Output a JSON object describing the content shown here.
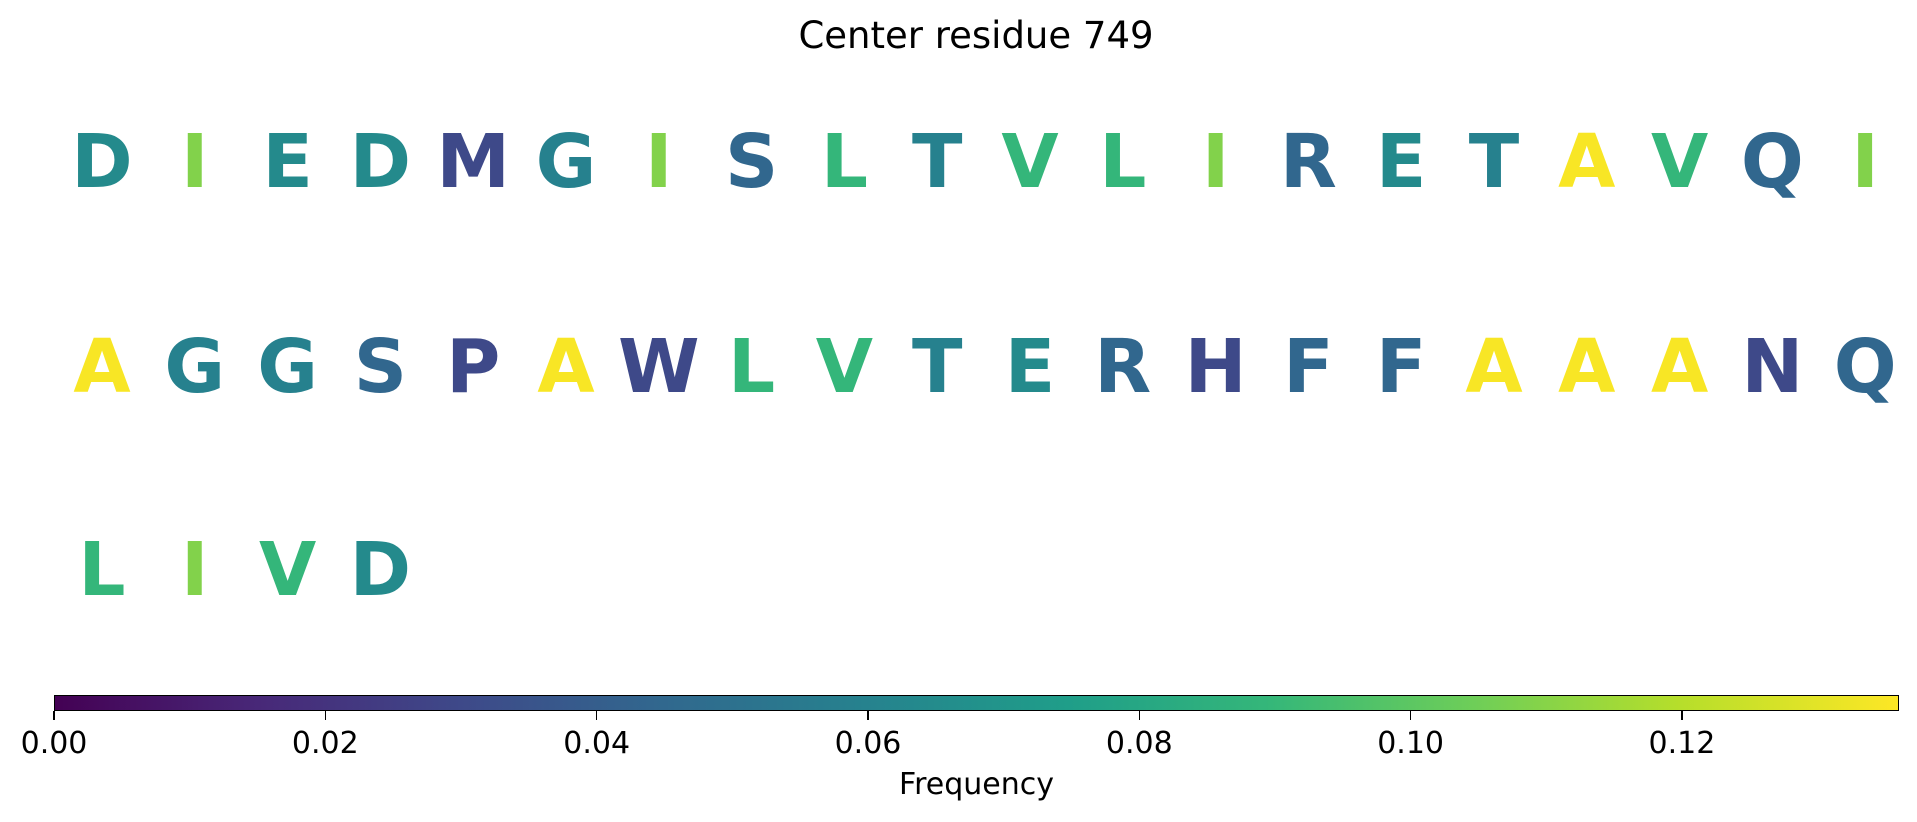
{
  "chart_data": {
    "type": "sequence-logo",
    "title": "Center residue 749",
    "rows": [
      [
        "D",
        "I",
        "E",
        "D",
        "M",
        "G",
        "I",
        "S",
        "L",
        "T",
        "V",
        "L",
        "I",
        "R",
        "E",
        "T",
        "A",
        "V",
        "Q",
        "I"
      ],
      [
        "A",
        "G",
        "G",
        "S",
        "P",
        "A",
        "W",
        "L",
        "V",
        "T",
        "E",
        "R",
        "H",
        "F",
        "F",
        "A",
        "A",
        "A",
        "N",
        "Q"
      ],
      [
        "L",
        "I",
        "V",
        "D"
      ]
    ],
    "residue_frequency": {
      "A": 0.135,
      "I": 0.11,
      "L": 0.09,
      "V": 0.09,
      "E": 0.065,
      "D": 0.065,
      "T": 0.06,
      "G": 0.06,
      "S": 0.045,
      "R": 0.045,
      "Q": 0.045,
      "F": 0.045,
      "N": 0.03,
      "H": 0.03,
      "W": 0.03,
      "M": 0.03,
      "P": 0.03
    },
    "colorbar": {
      "label": "Frequency",
      "colormap": "viridis",
      "range": [
        0,
        0.136
      ],
      "ticks": [
        0.0,
        0.02,
        0.04,
        0.06,
        0.08,
        0.1,
        0.12
      ],
      "tick_labels": [
        "0.00",
        "0.02",
        "0.04",
        "0.06",
        "0.08",
        "0.10",
        "0.12"
      ]
    }
  }
}
